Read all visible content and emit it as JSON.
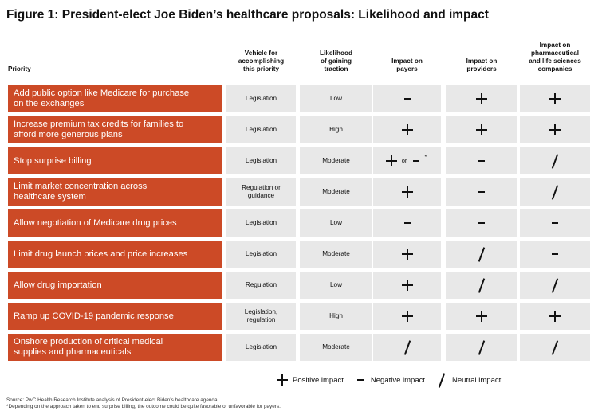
{
  "title": "Figure 1: President-elect Joe Biden’s healthcare proposals: Likelihood and impact",
  "headers": {
    "priority": "Priority",
    "vehicle": "Vehicle for\naccomplishing\nthis priority",
    "likelihood": "Likelihood\nof gaining\ntraction",
    "payers": "Impact on\npayers",
    "providers": "Impact on\nproviders",
    "pharma": "Impact on\npharmaceutical\nand life sciences\ncompanies"
  },
  "rows": [
    {
      "priority": "Add public option like Medicare for purchase\non the exchanges",
      "vehicle": "Legislation",
      "likelihood": "Low",
      "payers": "negative",
      "providers": "positive",
      "pharma": "positive"
    },
    {
      "priority": "Increase premium tax credits for families to\nafford more generous plans",
      "vehicle": "Legislation",
      "likelihood": "High",
      "payers": "positive",
      "providers": "positive",
      "pharma": "positive"
    },
    {
      "priority": "Stop surprise billing",
      "vehicle": "Legislation",
      "likelihood": "Moderate",
      "payers": "positive-or-negative",
      "providers": "negative",
      "pharma": "neutral"
    },
    {
      "priority": "Limit market concentration across\nhealthcare system",
      "vehicle": "Regulation or\nguidance",
      "likelihood": "Moderate",
      "payers": "positive",
      "providers": "negative",
      "pharma": "neutral"
    },
    {
      "priority": "Allow negotiation of Medicare drug prices",
      "vehicle": "Legislation",
      "likelihood": "Low",
      "payers": "negative",
      "providers": "negative",
      "pharma": "negative"
    },
    {
      "priority": "Limit drug launch prices and price increases",
      "vehicle": "Legislation",
      "likelihood": "Moderate",
      "payers": "positive",
      "providers": "neutral",
      "pharma": "negative"
    },
    {
      "priority": "Allow drug importation",
      "vehicle": "Regulation",
      "likelihood": "Low",
      "payers": "positive",
      "providers": "neutral",
      "pharma": "neutral"
    },
    {
      "priority": "Ramp up COVID-19 pandemic response",
      "vehicle": "Legislation,\nregulation",
      "likelihood": "High",
      "payers": "positive",
      "providers": "positive",
      "pharma": "positive"
    },
    {
      "priority": "Onshore production of critical medical\nsupplies and pharmaceuticals",
      "vehicle": "Legislation",
      "likelihood": "Moderate",
      "payers": "neutral",
      "providers": "neutral",
      "pharma": "neutral"
    }
  ],
  "or_text": "or",
  "asterisk": "*",
  "legend": {
    "positive": "Positive impact",
    "negative": "Negative impact",
    "neutral": "Neutral impact"
  },
  "source": "Source: PwC Health Research Institute analysis of President-elect Biden’s healthcare agenda",
  "footnote": "*Depending on the approach taken to end surprise billing, the outcome could be quite favorable or unfavorable for payers.",
  "colors": {
    "priority_fill": "#cc4a26",
    "cell_fill": "#e8e8e8"
  },
  "icons": {
    "positive": "plus-icon",
    "negative": "minus-icon",
    "neutral": "slash-icon"
  }
}
